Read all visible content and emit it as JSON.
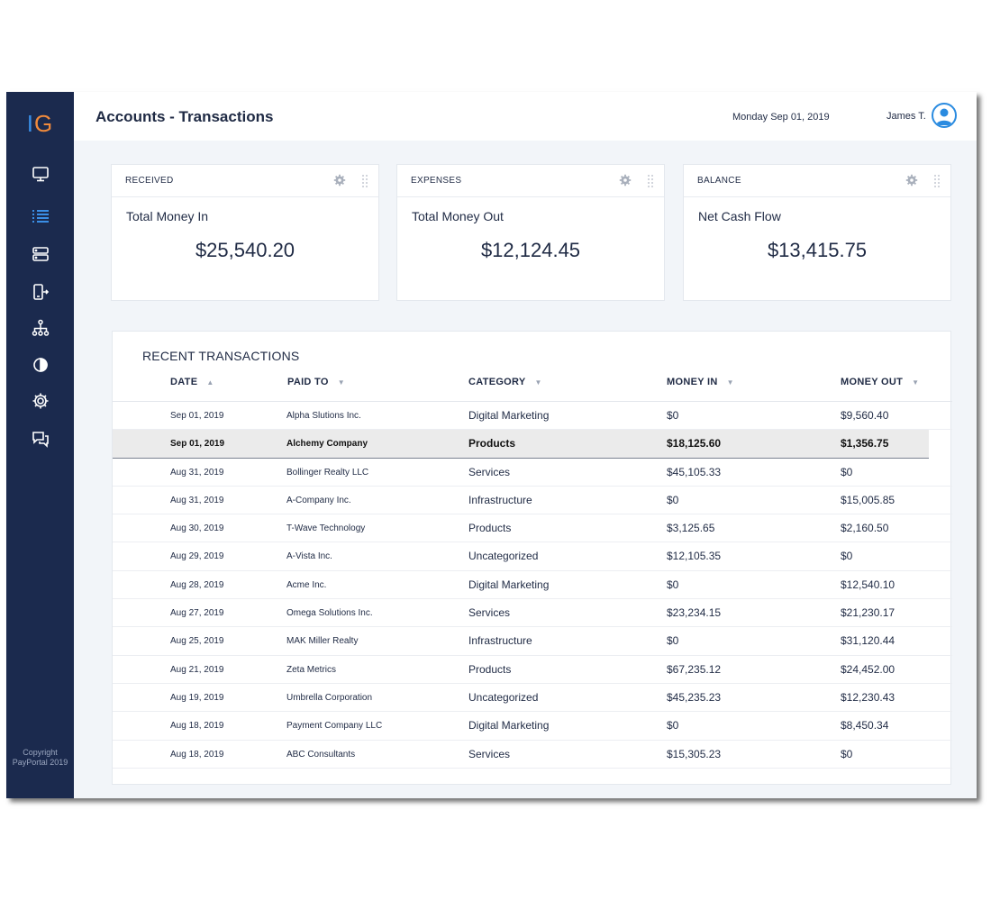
{
  "app": {
    "logo_i": "I",
    "logo_g": "G",
    "page_title": "Accounts - Transactions",
    "date": "Monday Sep 01, 2019",
    "user_name": "James T.",
    "copyright_line1": "Copyright",
    "copyright_line2": "PayPortal 2019",
    "colors": {
      "sidebar": "#1b2a4e",
      "accent": "#3a8ee6",
      "logo_g": "#f08a3c",
      "background": "#f2f5f9"
    }
  },
  "sidebar": {
    "items": [
      {
        "icon": "monitor-icon",
        "active": false
      },
      {
        "icon": "list-icon",
        "active": true
      },
      {
        "icon": "server-icon",
        "active": false
      },
      {
        "icon": "mobile-transfer-icon",
        "active": false
      },
      {
        "icon": "hierarchy-icon",
        "active": false
      },
      {
        "icon": "pie-chart-icon",
        "active": false
      },
      {
        "icon": "gear-icon",
        "active": false
      },
      {
        "icon": "chat-icon",
        "active": false
      }
    ]
  },
  "cards": [
    {
      "label": "RECEIVED",
      "subtitle": "Total Money In",
      "value": "$25,540.20"
    },
    {
      "label": "EXPENSES",
      "subtitle": "Total Money Out",
      "value": "$12,124.45"
    },
    {
      "label": "BALANCE",
      "subtitle": "Net Cash Flow",
      "value": "$13,415.75"
    }
  ],
  "transactions": {
    "title": "RECENT TRANSACTIONS",
    "columns": [
      {
        "label": "DATE",
        "sort": "asc"
      },
      {
        "label": "PAID TO",
        "sort": "desc"
      },
      {
        "label": "CATEGORY",
        "sort": "desc"
      },
      {
        "label": "MONEY IN",
        "sort": "desc"
      },
      {
        "label": "MONEY OUT",
        "sort": "desc"
      }
    ],
    "sort_up_glyph": "▲",
    "sort_down_glyph": "▼",
    "highlighted_row": 1,
    "rows": [
      {
        "date": "Sep 01, 2019",
        "paid_to": "Alpha Slutions Inc.",
        "category": "Digital Marketing",
        "money_in": "$0",
        "money_out": "$9,560.40"
      },
      {
        "date": "Sep 01, 2019",
        "paid_to": "Alchemy Company",
        "category": "Products",
        "money_in": "$18,125.60",
        "money_out": "$1,356.75"
      },
      {
        "date": "Aug 31, 2019",
        "paid_to": "Bollinger Realty LLC",
        "category": "Services",
        "money_in": "$45,105.33",
        "money_out": "$0"
      },
      {
        "date": "Aug 31, 2019",
        "paid_to": "A-Company Inc.",
        "category": "Infrastructure",
        "money_in": "$0",
        "money_out": "$15,005.85"
      },
      {
        "date": "Aug 30, 2019",
        "paid_to": "T-Wave Technology",
        "category": "Products",
        "money_in": "$3,125.65",
        "money_out": "$2,160.50"
      },
      {
        "date": "Aug 29, 2019",
        "paid_to": "A-Vista Inc.",
        "category": "Uncategorized",
        "money_in": "$12,105.35",
        "money_out": "$0"
      },
      {
        "date": "Aug 28, 2019",
        "paid_to": "Acme Inc.",
        "category": "Digital Marketing",
        "money_in": "$0",
        "money_out": "$12,540.10"
      },
      {
        "date": "Aug 27, 2019",
        "paid_to": "Omega Solutions Inc.",
        "category": "Services",
        "money_in": "$23,234.15",
        "money_out": "$21,230.17"
      },
      {
        "date": "Aug 25, 2019",
        "paid_to": "MAK Miller Realty",
        "category": "Infrastructure",
        "money_in": "$0",
        "money_out": "$31,120.44"
      },
      {
        "date": "Aug 21, 2019",
        "paid_to": "Zeta Metrics",
        "category": "Products",
        "money_in": "$67,235.12",
        "money_out": "$24,452.00"
      },
      {
        "date": "Aug 19, 2019",
        "paid_to": "Umbrella Corporation",
        "category": "Uncategorized",
        "money_in": "$45,235.23",
        "money_out": "$12,230.43"
      },
      {
        "date": "Aug 18, 2019",
        "paid_to": "Payment Company LLC",
        "category": "Digital Marketing",
        "money_in": "$0",
        "money_out": "$8,450.34"
      },
      {
        "date": "Aug 18, 2019",
        "paid_to": "ABC Consultants",
        "category": "Services",
        "money_in": "$15,305.23",
        "money_out": "$0"
      }
    ]
  }
}
